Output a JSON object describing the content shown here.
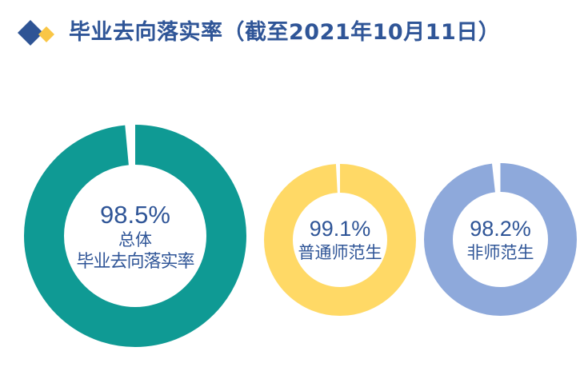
{
  "header": {
    "title": "毕业去向落实率（截至2021年10月11日）",
    "logo": {
      "icon": "diamond-logo-icon",
      "colors": {
        "primary": "#2E5495",
        "secondary": "#F9C646"
      }
    }
  },
  "chart_data": {
    "type": "pie",
    "subtype": "donut",
    "title": "毕业去向落实率（截至2021年10月11日）",
    "charts": [
      {
        "name": "总体毕业去向落实率",
        "label_lines": [
          "总体",
          "毕业去向落实率"
        ],
        "value": 98.5,
        "remainder": 1.5,
        "value_label": "98.5%",
        "color": "#0F9A94"
      },
      {
        "name": "普通师范生",
        "label_lines": [
          "普通师范生"
        ],
        "value": 99.1,
        "remainder": 0.9,
        "value_label": "99.1%",
        "color": "#FFD966"
      },
      {
        "name": "非师范生",
        "label_lines": [
          "非师范生"
        ],
        "value": 98.2,
        "remainder": 1.8,
        "value_label": "98.2%",
        "color": "#8EA9DB"
      }
    ],
    "legend": "none",
    "grid": false
  },
  "donuts": [
    {
      "value_label": "98.5%",
      "line1": "总体",
      "line2": "毕业去向落实率"
    },
    {
      "value_label": "99.1%",
      "line1": "普通师范生"
    },
    {
      "value_label": "98.2%",
      "line1": "非师范生"
    }
  ],
  "colors": {
    "title_text": "#2F5597",
    "teal": "#0F9A94",
    "yellow": "#FFD966",
    "blue": "#8EA9DB"
  }
}
